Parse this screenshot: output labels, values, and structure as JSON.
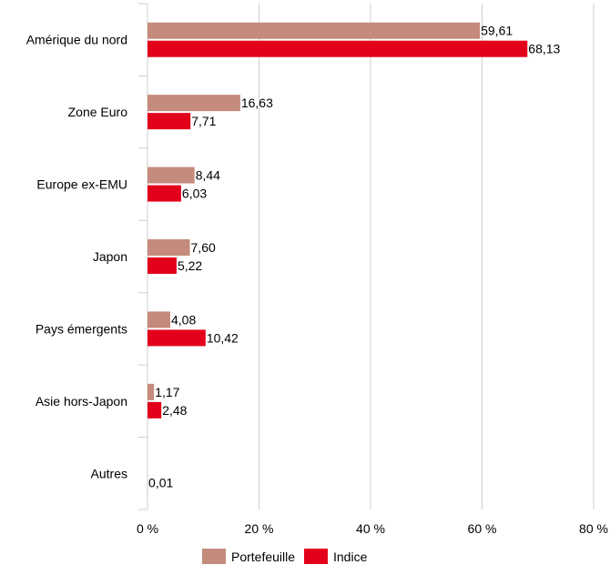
{
  "chart_data": {
    "type": "bar",
    "orientation": "horizontal",
    "categories": [
      "Amérique du nord",
      "Zone Euro",
      "Europe ex-EMU",
      "Japon",
      "Pays émergents",
      "Asie hors-Japon",
      "Autres"
    ],
    "series": [
      {
        "name": "Portefeuille",
        "color": "#c48b7c",
        "values": [
          59.61,
          16.63,
          8.44,
          7.6,
          4.08,
          1.17,
          0
        ],
        "labels": [
          "59,61",
          "16,63",
          "8,44",
          "7,60",
          "4,08",
          "1,17",
          ""
        ]
      },
      {
        "name": "Indice",
        "color": "#e3001b",
        "values": [
          68.13,
          7.71,
          6.03,
          5.22,
          10.42,
          2.48,
          0.01
        ],
        "labels": [
          "68,13",
          "7,71",
          "6,03",
          "5,22",
          "10,42",
          "2,48",
          "0,01"
        ]
      }
    ],
    "xlim": [
      0,
      80
    ],
    "xticks": [
      0,
      20,
      40,
      60,
      80
    ],
    "xtick_labels": [
      "0 %",
      "20 %",
      "40 %",
      "60 %",
      "80 %"
    ],
    "grid": "vertical",
    "legend_position": "bottom",
    "title": "",
    "xlabel": "",
    "ylabel": ""
  }
}
